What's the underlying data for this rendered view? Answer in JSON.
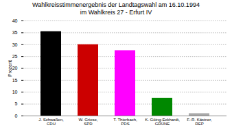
{
  "chart_data": {
    "type": "bar",
    "title": "Wahlkreisstimmenergebnis der Landtagswahl am 16.10.1994",
    "subtitle": "im Wahlkreis 27 - Erfurt IV",
    "ylabel": "Prozent",
    "categories": [
      "J. Schwaßen, CDU",
      "W. Griese, SPD",
      "T. Thierbach, PDS",
      "K. Göing-Eckhardt, GRÜNE",
      "F.-R. Kästner, REP"
    ],
    "values": [
      35.5,
      30.0,
      27.5,
      7.5,
      1.0
    ],
    "colors": [
      "#000000",
      "#cc0000",
      "#ff00ff",
      "#008800",
      "#aaaaaa"
    ],
    "ylim": [
      0,
      40
    ],
    "yticks": [
      0,
      5,
      10,
      15,
      20,
      25,
      30,
      35,
      40
    ],
    "grid": true
  }
}
